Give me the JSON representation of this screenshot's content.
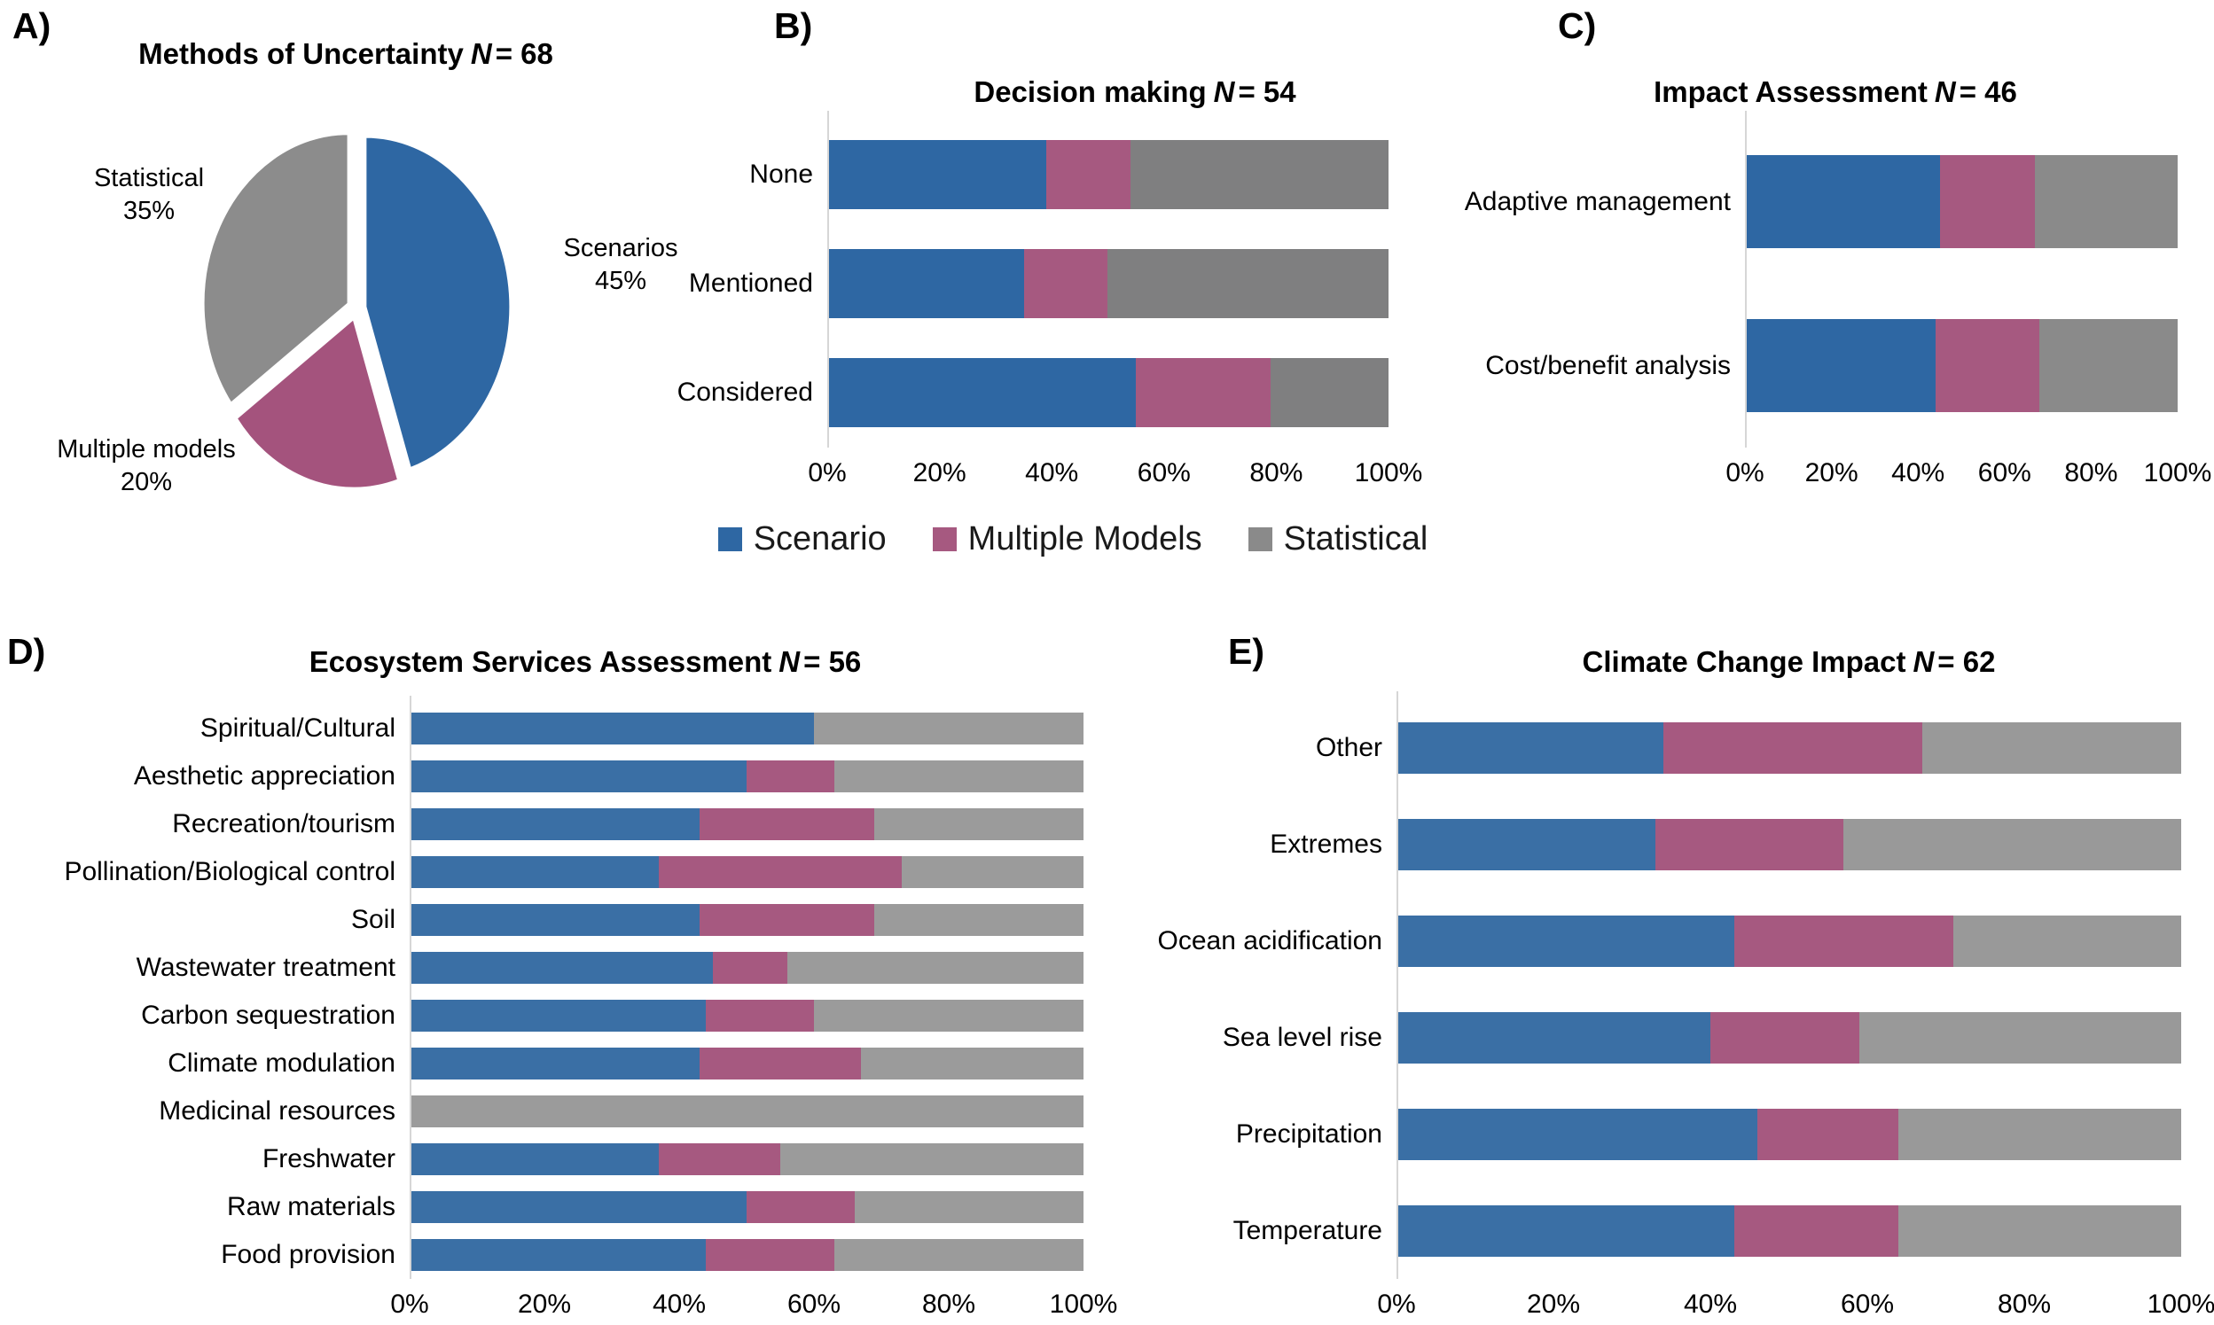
{
  "legend": {
    "items": [
      {
        "label": "Scenario",
        "color": "#2E67A3"
      },
      {
        "label": "Multiple Models",
        "color": "#A65980"
      },
      {
        "label": "Statistical",
        "color": "#8A8A8A"
      }
    ]
  },
  "chart_data": [
    {
      "id": "A",
      "panel_letter": "A)",
      "type": "pie",
      "title": "Methods of Uncertainty",
      "n_label": "N",
      "n_value": "= 68",
      "start_angle_deg": 0,
      "clockwise": true,
      "exploded": true,
      "slices": [
        {
          "label": "Scenarios",
          "value_pct": 45,
          "pct_label": "45%",
          "color": "#2E67A3"
        },
        {
          "label": "Multiple models",
          "value_pct": 20,
          "pct_label": "20%",
          "color": "#A4537D"
        },
        {
          "label": "Statistical",
          "value_pct": 35,
          "pct_label": "35%",
          "color": "#8C8C8C"
        }
      ]
    },
    {
      "id": "B",
      "panel_letter": "B)",
      "type": "bar",
      "stacked": true,
      "orientation": "horizontal",
      "title": "Decision making",
      "n_label": "N",
      "n_value": "= 54",
      "categories": [
        "None",
        "Mentioned",
        "Considered"
      ],
      "series": [
        {
          "name": "Scenario",
          "color": "#2E67A3",
          "values": [
            39,
            35,
            55
          ]
        },
        {
          "name": "Multiple Models",
          "color": "#A65980",
          "values": [
            15,
            15,
            24
          ]
        },
        {
          "name": "Statistical",
          "color": "#7F7F80",
          "values": [
            46,
            50,
            21
          ]
        }
      ],
      "x_ticks": [
        "0%",
        "20%",
        "40%",
        "60%",
        "80%",
        "100%"
      ],
      "xlim": [
        0,
        100
      ]
    },
    {
      "id": "C",
      "panel_letter": "C)",
      "type": "bar",
      "stacked": true,
      "orientation": "horizontal",
      "title": "Impact Assessment",
      "n_label": "N",
      "n_value": "= 46",
      "categories": [
        "Adaptive management",
        "Cost/benefit analysis"
      ],
      "series": [
        {
          "name": "Scenario",
          "color": "#2E67A3",
          "values": [
            45,
            44
          ]
        },
        {
          "name": "Multiple Models",
          "color": "#A65980",
          "values": [
            22,
            24
          ]
        },
        {
          "name": "Statistical",
          "color": "#8A8A8A",
          "values": [
            33,
            32
          ]
        }
      ],
      "x_ticks": [
        "0%",
        "20%",
        "40%",
        "60%",
        "80%",
        "100%"
      ],
      "xlim": [
        0,
        100
      ]
    },
    {
      "id": "D",
      "panel_letter": "D)",
      "type": "bar",
      "stacked": true,
      "orientation": "horizontal",
      "title": "Ecosystem Services Assessment",
      "n_label": "N",
      "n_value": "= 56",
      "categories": [
        "Spiritual/Cultural",
        "Aesthetic appreciation",
        "Recreation/tourism",
        "Pollination/Biological control",
        "Soil",
        "Wastewater treatment",
        "Carbon sequestration",
        "Climate modulation",
        "Medicinal resources",
        "Freshwater",
        "Raw materials",
        "Food provision"
      ],
      "series": [
        {
          "name": "Scenario",
          "color": "#3A6FA5",
          "values": [
            60,
            50,
            43,
            37,
            43,
            45,
            44,
            43,
            0,
            37,
            50,
            44
          ]
        },
        {
          "name": "Multiple Models",
          "color": "#A65980",
          "values": [
            0,
            13,
            26,
            36,
            26,
            11,
            16,
            24,
            0,
            18,
            16,
            19
          ]
        },
        {
          "name": "Statistical",
          "color": "#9B9B9B",
          "values": [
            40,
            37,
            31,
            27,
            31,
            44,
            40,
            33,
            100,
            45,
            34,
            37
          ]
        }
      ],
      "x_ticks": [
        "0%",
        "20%",
        "40%",
        "60%",
        "80%",
        "100%"
      ],
      "xlim": [
        0,
        100
      ]
    },
    {
      "id": "E",
      "panel_letter": "E)",
      "type": "bar",
      "stacked": true,
      "orientation": "horizontal",
      "title": "Climate Change Impact",
      "n_label": "N",
      "n_value": "= 62",
      "categories": [
        "Other",
        "Extremes",
        "Ocean acidification",
        "Sea level rise",
        "Precipitation",
        "Temperature"
      ],
      "series": [
        {
          "name": "Scenario",
          "color": "#3A6FA5",
          "values": [
            34,
            33,
            43,
            40,
            46,
            43
          ]
        },
        {
          "name": "Multiple Models",
          "color": "#A65980",
          "values": [
            33,
            24,
            28,
            19,
            18,
            21
          ]
        },
        {
          "name": "Statistical",
          "color": "#999999",
          "values": [
            33,
            43,
            29,
            41,
            36,
            36
          ]
        }
      ],
      "x_ticks": [
        "0%",
        "20%",
        "40%",
        "60%",
        "80%",
        "100%"
      ],
      "xlim": [
        0,
        100
      ]
    }
  ]
}
